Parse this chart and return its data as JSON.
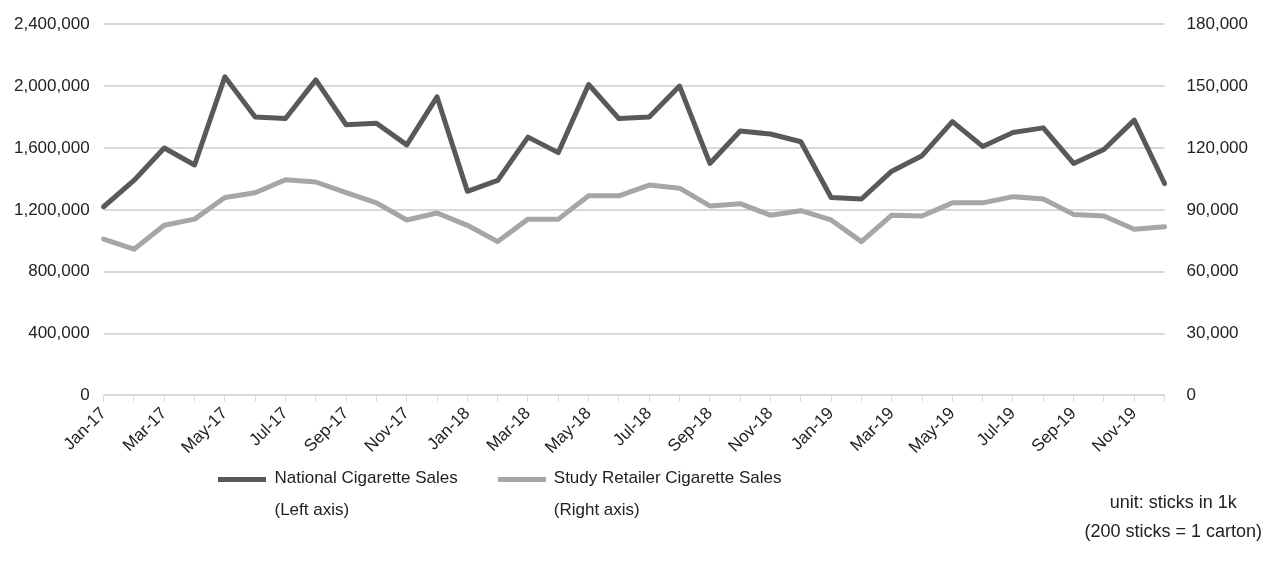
{
  "chart_data": {
    "type": "line",
    "categories": [
      "Jan-17",
      null,
      "Mar-17",
      null,
      "May-17",
      null,
      "Jul-17",
      null,
      "Sep-17",
      null,
      "Nov-17",
      null,
      "Jan-18",
      null,
      "Mar-18",
      null,
      "May-18",
      null,
      "Jul-18",
      null,
      "Sep-18",
      null,
      "Nov-18",
      null,
      "Jan-19",
      null,
      "Mar-19",
      null,
      "May-19",
      null,
      "Jul-19",
      null,
      "Sep-19",
      null,
      "Nov-19",
      null
    ],
    "series": [
      {
        "name": "National Cigarette Sales\n(Left axis)",
        "color": "#595959",
        "values": [
          1220000,
          1390000,
          1600000,
          1490000,
          2060000,
          1800000,
          1790000,
          2040000,
          1750000,
          1760000,
          1620000,
          1930000,
          1320000,
          1390000,
          1670000,
          1570000,
          2010000,
          1790000,
          1800000,
          2000000,
          1500000,
          1710000,
          1690000,
          1640000,
          1280000,
          1270000,
          1450000,
          1550000,
          1770000,
          1610000,
          1700000,
          1730000,
          1500000,
          1590000,
          1780000,
          1370000
        ]
      },
      {
        "name": "Study Retailer Cigarette Sales\n(Right axis)",
        "color": "#a6a6a6",
        "axis": "y2",
        "values": [
          75800,
          70900,
          82500,
          85500,
          96000,
          98300,
          104600,
          103500,
          98300,
          93400,
          85100,
          88500,
          82500,
          74600,
          85500,
          85500,
          96800,
          96800,
          102000,
          100500,
          91900,
          93000,
          87400,
          89600,
          85100,
          74600,
          87400,
          87000,
          93400,
          93400,
          96400,
          95300,
          87800,
          87000,
          80600,
          81800
        ]
      }
    ],
    "ylim": [
      0,
      2400000
    ],
    "yticks": [
      0,
      {
        "value": 400000,
        "label": "400,000"
      },
      {
        "value": 800000,
        "label": "800,000"
      },
      {
        "value": 1200000,
        "label": "1,200,000"
      },
      {
        "value": 1600000,
        "label": "1,600,000"
      },
      {
        "value": 2000000,
        "label": "2,000,000"
      },
      {
        "value": 2400000,
        "label": "2,400,000"
      }
    ],
    "y2lim": [
      0,
      180000
    ],
    "y2ticks": [
      0,
      {
        "value": 30000,
        "label": "30,000"
      },
      {
        "value": 60000,
        "label": "60,000"
      },
      {
        "value": 90000,
        "label": "90,000"
      },
      {
        "value": 120000,
        "label": "120,000"
      },
      {
        "value": 150000,
        "label": "150,000"
      },
      {
        "value": 180000,
        "label": "180,000"
      }
    ],
    "grid": "y",
    "legend": "bottom",
    "marker": "none",
    "line_style": "solid",
    "annotations": [
      "unit: sticks in 1k",
      "(200 sticks = 1 carton)"
    ]
  }
}
